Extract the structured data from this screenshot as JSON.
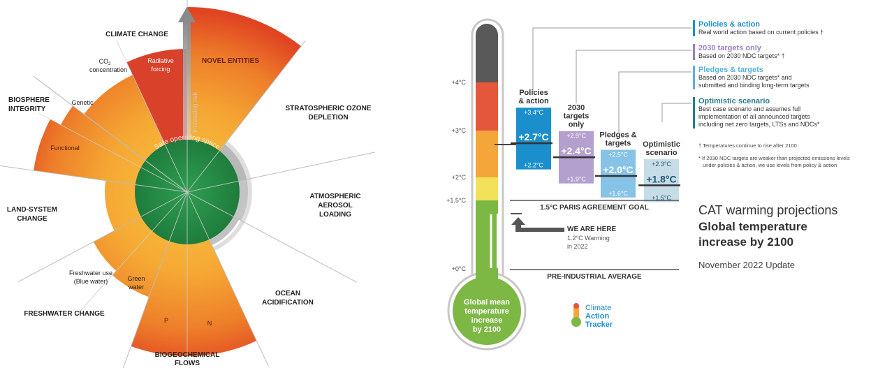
{
  "boundaries": {
    "climate_change": "CLIMATE CHANGE",
    "novel_entities": "NOVEL ENTITIES",
    "ozone": [
      "STRATOSPHERIC OZONE",
      "DEPLETION"
    ],
    "aerosol": [
      "ATMOSPHERIC",
      "AEROSOL",
      "LOADING"
    ],
    "ocean": [
      "OCEAN",
      "ACIDIFICATION"
    ],
    "biogeochemical": [
      "BIOGEOCHEMICAL",
      "FLOWS"
    ],
    "freshwater": "FRESHWATER CHANGE",
    "land": [
      "LAND-SYSTEM",
      "CHANGE"
    ],
    "biosphere": [
      "BIOSPHERE",
      "INTEGRITY"
    ]
  },
  "sub_labels": {
    "co2": [
      "CO",
      "2",
      "concentration"
    ],
    "radiative": [
      "Radiative",
      "forcing"
    ],
    "genetic": "Genetic",
    "functional": "Functional",
    "blue_water": [
      "Freshwater use",
      "(Blue water)"
    ],
    "green_water": [
      "Green",
      "water"
    ],
    "p": "P",
    "n": "N"
  },
  "increasing_risk": "Increasing risk",
  "safe_operating_space": "Safe operating space",
  "thermometer": {
    "ticks": [
      "+4°C",
      "+3°C",
      "+2°C",
      "+1.5°C",
      "+0°C"
    ],
    "bulb_label": [
      "Global mean",
      "temperature",
      "increase",
      "by 2100"
    ]
  },
  "scenarios": [
    {
      "title": [
        "Policies",
        "& action"
      ],
      "high": "+3.4°C",
      "mid": "+2.7°C",
      "low": "+2.2°C",
      "color": "#1b8fcc"
    },
    {
      "title": [
        "2030",
        "targets",
        "only"
      ],
      "high": "+2.9°C",
      "mid": "+2.4°C",
      "low": "+1.9°C",
      "color": "#b4a0cf"
    },
    {
      "title": [
        "Pledges &",
        "targets"
      ],
      "high": "+2.5°C",
      "mid": "+2.0°C",
      "low": "+1.6°C",
      "color": "#86c3e6"
    },
    {
      "title": [
        "Optimistic",
        "scenario"
      ],
      "high": "+2.3°C",
      "mid": "+1.8°C",
      "low": "+1.5°C",
      "color": "#c6dde8"
    }
  ],
  "paris_goal": "1.5°C PARIS AGREEMENT GOAL",
  "preindustrial": "PRE-INDUSTRIAL AVERAGE",
  "we_are_here": {
    "title": "WE ARE HERE",
    "line1": "1.2°C Warming",
    "line2": "in 2022"
  },
  "legend": [
    {
      "title": "Policies & action",
      "lines": [
        "Real world action based on current policies †"
      ],
      "color": "#1b8fcc"
    },
    {
      "title": "2030 targets only",
      "lines": [
        "Based on 2030 NDC targets* †"
      ],
      "color": "#9b7fc4"
    },
    {
      "title": "Pledges & targets",
      "lines": [
        "Based on 2030 NDC targets* and",
        "submitted and binding long-term targets"
      ],
      "color": "#5ab0dd"
    },
    {
      "title": "Optimistic scenario",
      "lines": [
        "Best case scenario and assumes full",
        "implementation of all announced targets",
        "including net zero targets, LTSs and NDCs*"
      ],
      "color": "#2a7a8e"
    }
  ],
  "footnote1": "† Temperatures continue to rise after 2100",
  "footnote2": [
    "* If 2030 NDC targets are weaker than projected emissions levels",
    "under policies & action, we use levels from policy & action"
  ],
  "cat_title": {
    "line1": "CAT warming projections",
    "line2": "Global temperature",
    "line3": "increase by 2100",
    "line4": "November 2022 Update"
  },
  "logo": [
    "Climate",
    "Action",
    "Tracker"
  ]
}
